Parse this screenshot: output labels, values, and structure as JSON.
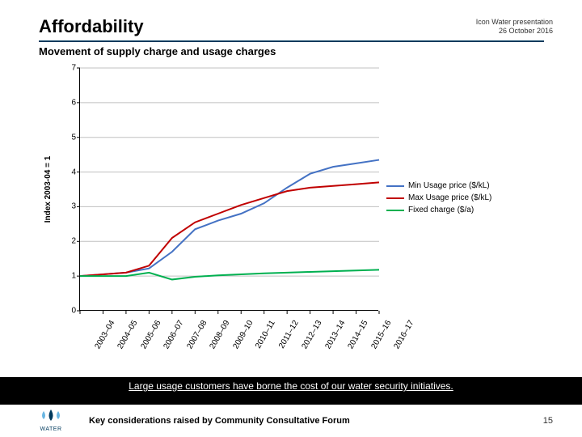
{
  "header": {
    "title": "Affordability",
    "meta_line1": "Icon Water presentation",
    "meta_line2": "26 October 2016",
    "subtitle": "Movement of supply charge and usage charges"
  },
  "chart": {
    "type": "line",
    "ylabel": "Index 2003-04 = 1",
    "ylim": [
      0,
      7
    ],
    "ytick_step": 1,
    "yticks": [
      0,
      1,
      2,
      3,
      4,
      5,
      6,
      7
    ],
    "categories": [
      "2003–04",
      "2004–05",
      "2005–06",
      "2006–07",
      "2007–08",
      "2008–09",
      "2009–10",
      "2010–11",
      "2011–12",
      "2012–13",
      "2013–14",
      "2014–15",
      "2015–16",
      "2016–17"
    ],
    "series": [
      {
        "name": "Min Usage price ($/kL)",
        "color": "#4472c4",
        "values": [
          1.0,
          1.05,
          1.1,
          1.22,
          1.7,
          2.35,
          2.6,
          2.8,
          3.1,
          3.55,
          3.95,
          4.15,
          4.25,
          4.35
        ]
      },
      {
        "name": "Max Usage price ($/kL)",
        "color": "#c00000",
        "values": [
          1.0,
          1.05,
          1.1,
          1.3,
          2.1,
          2.55,
          2.8,
          3.05,
          3.25,
          3.45,
          3.55,
          3.6,
          3.65,
          3.7
        ]
      },
      {
        "name": "Fixed charge ($/a)",
        "color": "#00b050",
        "values": [
          1.0,
          1.0,
          1.0,
          1.1,
          0.9,
          0.98,
          1.02,
          1.05,
          1.08,
          1.1,
          1.12,
          1.14,
          1.16,
          1.18
        ]
      }
    ],
    "grid_color": "#c0c0c0",
    "axis_color": "#000000",
    "background_color": "#ffffff",
    "line_width": 2,
    "label_fontsize": 10,
    "xtick_rotation": -60
  },
  "banner": {
    "text": "Large usage customers have borne the cost of our water security initiatives."
  },
  "footer": {
    "logo_label": "WATER",
    "caption": "Key considerations raised by Community Consultative Forum",
    "page": "15"
  }
}
